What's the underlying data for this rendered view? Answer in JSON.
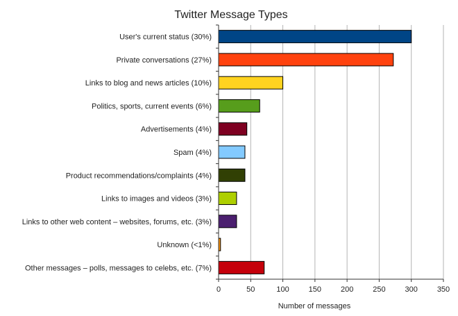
{
  "chart_data": {
    "type": "bar",
    "orientation": "horizontal",
    "title": "Twitter Message Types",
    "xlabel": "Number of messages",
    "ylabel": "",
    "xlim": [
      0,
      350
    ],
    "x_ticks": [
      0,
      50,
      100,
      150,
      200,
      250,
      300,
      350
    ],
    "grid": true,
    "legend": "none",
    "categories": [
      "User's current status (30%)",
      "Private conversations (27%)",
      "Links to blog and news articles (10%)",
      "Politics, sports, current events (6%)",
      "Advertisements (4%)",
      "Spam (4%)",
      "Product recommendations/complaints (4%)",
      "Links to images and videos (3%)",
      "Links to other web content – websites, forums, etc. (3%)",
      "Unknown (<1%)",
      "Other messages – polls, messages to celebs, etc. (7%)"
    ],
    "values": [
      300,
      272,
      100,
      64,
      44,
      41,
      41,
      28,
      28,
      3,
      71
    ],
    "colors": [
      "#004586",
      "#ff420e",
      "#ffd320",
      "#579d1c",
      "#7e0021",
      "#83caff",
      "#314004",
      "#aecf00",
      "#4b1f6f",
      "#ff950e",
      "#c5000b"
    ]
  }
}
